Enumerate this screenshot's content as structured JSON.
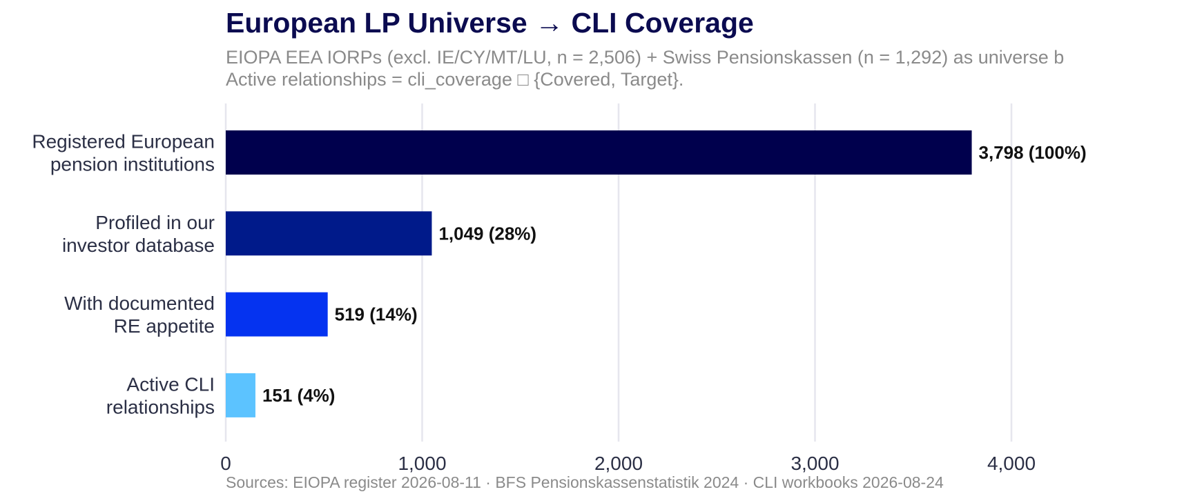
{
  "chart_data": {
    "type": "bar",
    "orientation": "horizontal",
    "title": "European LP Universe → CLI Coverage",
    "subtitle": [
      "EIOPA EEA IORPs (excl. IE/CY/MT/LU, n = 2,506) + Swiss Pensionskassen (n = 1,292) as universe b",
      "Active relationships = cli_coverage □ {Covered, Target}."
    ],
    "caption": "Sources: EIOPA register 2026-08-11 · BFS Pensionskassenstatistik 2024 · CLI workbooks 2026-08-24",
    "categories": [
      [
        "Registered European",
        "pension institutions"
      ],
      [
        "Profiled in our",
        "investor database"
      ],
      [
        "With documented",
        "RE appetite"
      ],
      [
        "Active CLI",
        "relationships"
      ]
    ],
    "values": [
      3798,
      1049,
      519,
      151
    ],
    "data_labels": [
      "3,798  (100%)",
      "1,049  (28%)",
      "519  (14%)",
      "151  (4%)"
    ],
    "colors": [
      "#00004d",
      "#001a8a",
      "#0533f0",
      "#5cc3ff"
    ],
    "xlim": [
      0,
      4500
    ],
    "xticks": [
      0,
      1000,
      2000,
      3000,
      4000
    ],
    "xtick_labels": [
      "0",
      "1,000",
      "2,000",
      "3,000",
      "4,000"
    ],
    "xlabel": "",
    "ylabel": "",
    "grid": "vertical",
    "gridline_color": "#e6e6ee",
    "title_color": "#0b0b50"
  }
}
